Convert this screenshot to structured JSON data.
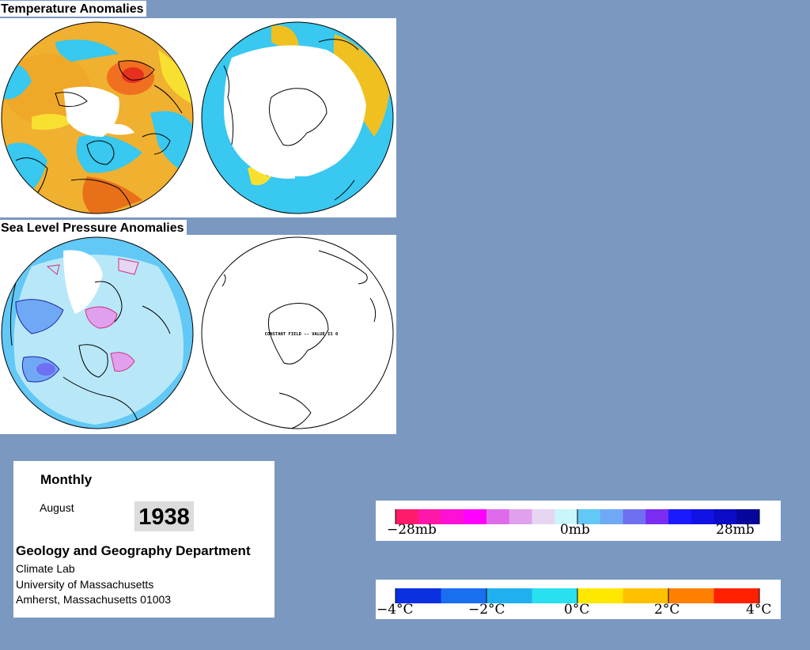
{
  "headers": {
    "temperature": "Temperature Anomalies",
    "pressure": "Sea Level Pressure Anomalies"
  },
  "info": {
    "period": "Monthly",
    "month": "August",
    "year": "1938",
    "department": "Geology and Geography Department",
    "lab": "Climate Lab",
    "university": "University of Massachusetts",
    "address": "Amherst, Massachusetts 01003"
  },
  "pressure_scale": {
    "labels": [
      "−28mb",
      "0mb",
      "28mb"
    ],
    "colors": [
      "#ff1a6c",
      "#ff17a9",
      "#ff10d5",
      "#ff00ff",
      "#dd6bea",
      "#e0a0ee",
      "#e6d6f2",
      "#c8f6fa",
      "#62c8f6",
      "#6fa9f5",
      "#6f6ff2",
      "#7a2cf0",
      "#1a1aff",
      "#1212e5",
      "#0c0cc6",
      "#06069c"
    ]
  },
  "temperature_scale": {
    "labels": [
      "−4°C",
      "−2°C",
      "0°C",
      "2°C",
      "4°C"
    ],
    "colors": [
      "#0a30e0",
      "#1a6ef0",
      "#20b0f0",
      "#28e0f0",
      "#ffe800",
      "#ffc000",
      "#ff8000",
      "#ff2000"
    ]
  },
  "map_note": "CONSTANT FIELD -- VALUE IS 0",
  "colors": {
    "background": "#7a98c0",
    "temp_warm": "#f0a020",
    "temp_cool": "#38c8f0",
    "slp_neutral": "#b8e8f8"
  }
}
